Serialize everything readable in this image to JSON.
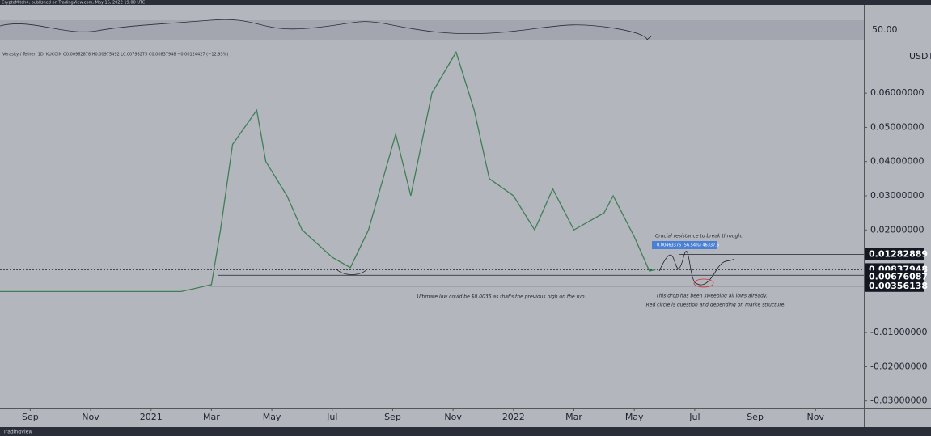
{
  "header": "CryptoMitch4, published on TradingView.com, May 16, 2022 19:00 UTC",
  "footer": "TradingView",
  "rsi_label": "50.00",
  "chart_data": {
    "type": "line",
    "title": "Verasity / Tether, 1D, KUCOIN  O0.00962878  H0.00975492  L0.00793275  C0.00837948  −0.00124427 (−12.93%)",
    "y_unit": "USDT",
    "x": [
      -1,
      5,
      6,
      6.3,
      6.7,
      7.5,
      7.8,
      8.5,
      9,
      10,
      10.6,
      11.2,
      12.1,
      12.6,
      13.3,
      14.1,
      14.7,
      15.2,
      16,
      16.7,
      17.3,
      18,
      19,
      19.3,
      20,
      20.5,
      20.7
    ],
    "series": [
      {
        "color": "#3f7f55",
        "values": [
          0.002,
          0.002,
          0.004,
          0.02,
          0.045,
          0.055,
          0.04,
          0.03,
          0.02,
          0.012,
          0.009,
          0.02,
          0.048,
          0.03,
          0.06,
          0.072,
          0.055,
          0.035,
          0.03,
          0.02,
          0.032,
          0.02,
          0.025,
          0.03,
          0.018,
          0.008,
          0.0084
        ]
      }
    ],
    "xlim": [
      -1,
      27.6
    ],
    "xticks": [
      {
        "value": 0,
        "label": "Sep"
      },
      {
        "value": 2,
        "label": "Nov"
      },
      {
        "value": 4,
        "label": "2021"
      },
      {
        "value": 6,
        "label": "Mar"
      },
      {
        "value": 8,
        "label": "May"
      },
      {
        "value": 10,
        "label": "Jul"
      },
      {
        "value": 12,
        "label": "Sep"
      },
      {
        "value": 14,
        "label": "Nov"
      },
      {
        "value": 16,
        "label": "2022"
      },
      {
        "value": 18,
        "label": "Mar"
      },
      {
        "value": 20,
        "label": "May"
      },
      {
        "value": 22,
        "label": "Jul"
      },
      {
        "value": 24,
        "label": "Sep"
      },
      {
        "value": 26,
        "label": "Nov"
      }
    ],
    "ylim": [
      -0.0322,
      0.0728
    ],
    "yticks": [
      {
        "value": 0.06,
        "label": "0.06000000"
      },
      {
        "value": 0.05,
        "label": "0.05000000"
      },
      {
        "value": 0.04,
        "label": "0.04000000"
      },
      {
        "value": 0.03,
        "label": "0.03000000"
      },
      {
        "value": 0.02,
        "label": "0.02000000"
      },
      {
        "value": -0.01,
        "label": "-0.01000000"
      },
      {
        "value": -0.02,
        "label": "-0.02000000"
      },
      {
        "value": -0.03,
        "label": "-0.03000000"
      }
    ],
    "levels": [
      0.01282889,
      0.00837948,
      0.00676087,
      0.00356138
    ],
    "annotations": [
      "Crucial resistance to break through.",
      "0.00463376 (56.54%) 46337.6",
      "Ultimate low could be $0.0035 as that's the previous high on the run.",
      "This drop has been sweeping all lows already.",
      "Red circle is question and depending on marke structure."
    ]
  }
}
